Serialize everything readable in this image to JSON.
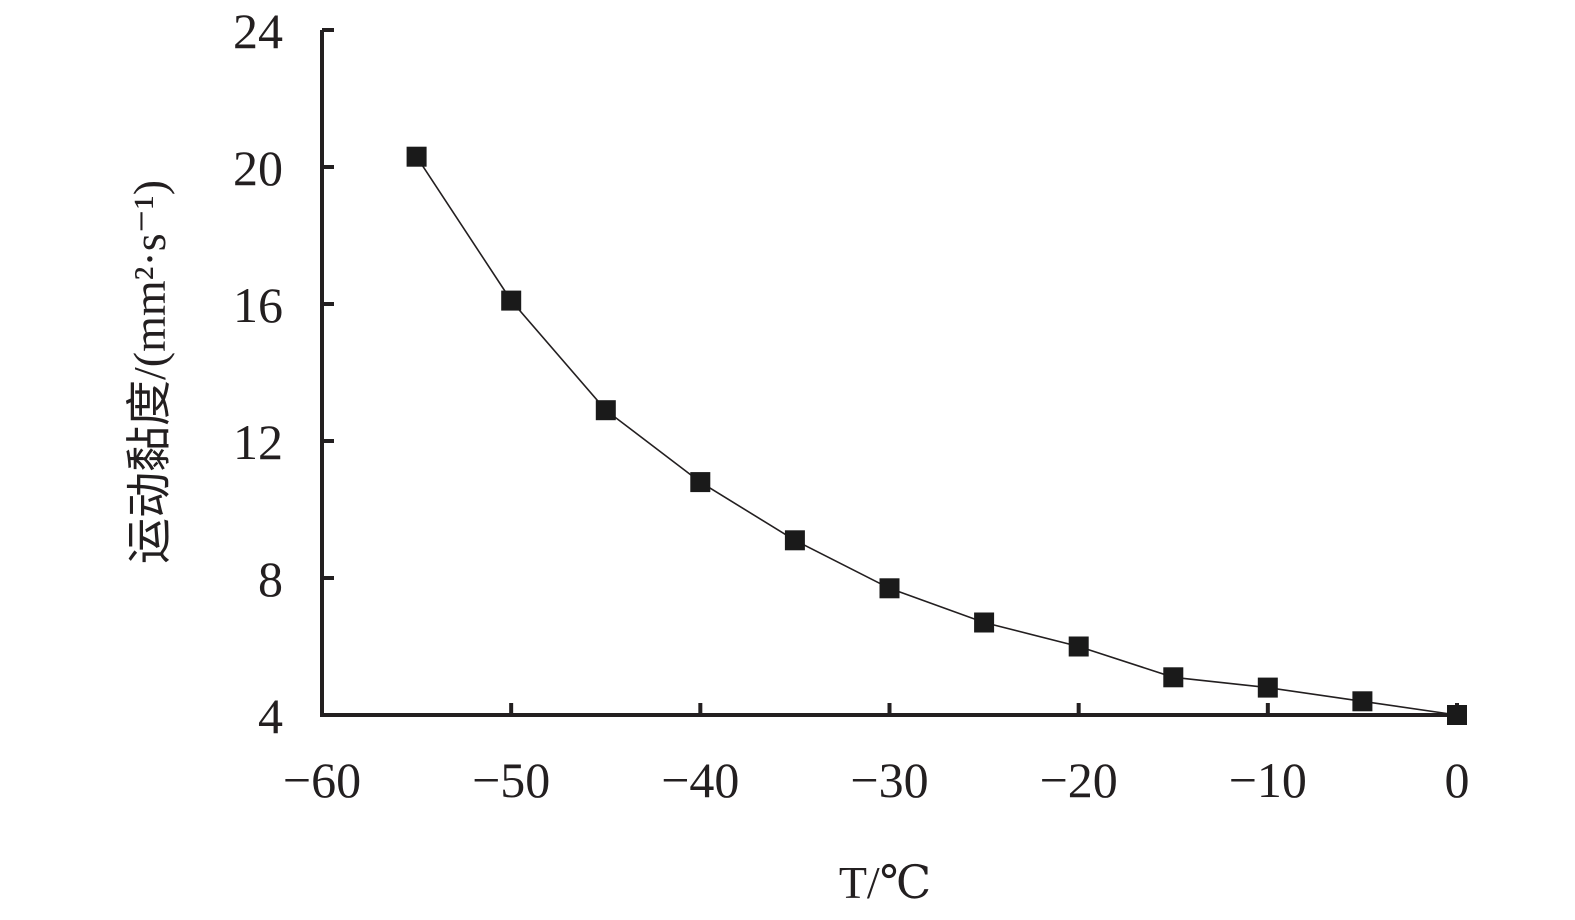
{
  "chart_data": {
    "type": "line",
    "xlabel": "T/℃",
    "ylabel": "运动黏度/(mm²·s⁻¹)",
    "xlim": [
      -60,
      0
    ],
    "ylim": [
      4,
      24
    ],
    "x_ticks": [
      -60,
      -50,
      -40,
      -30,
      -20,
      -10,
      0
    ],
    "y_ticks": [
      4,
      8,
      12,
      16,
      20,
      24
    ],
    "x_tick_labels": [
      "−60",
      "−50",
      "−40",
      "−30",
      "−20",
      "−10",
      "0"
    ],
    "y_tick_labels": [
      "4",
      "8",
      "12",
      "16",
      "20",
      "24"
    ],
    "grid": false,
    "marker": "square",
    "series": [
      {
        "x": [
          -55,
          -50,
          -45,
          -40,
          -35,
          -30,
          -25,
          -20,
          -15,
          -10,
          -5,
          0
        ],
        "y": [
          20.3,
          16.1,
          12.9,
          10.8,
          9.1,
          7.7,
          6.7,
          6.0,
          5.1,
          4.8,
          4.4,
          4.0
        ]
      }
    ]
  }
}
